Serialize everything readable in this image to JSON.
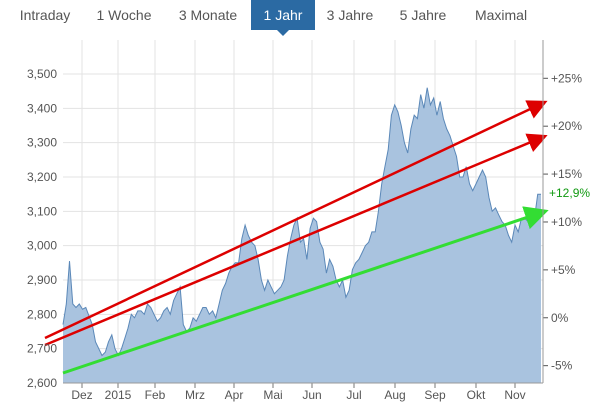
{
  "tabs": {
    "items": [
      {
        "label": "Intraday"
      },
      {
        "label": "1 Woche"
      },
      {
        "label": "3 Monate"
      },
      {
        "label": "1 Jahr"
      },
      {
        "label": "3 Jahre"
      },
      {
        "label": "5 Jahre"
      },
      {
        "label": "Maximal"
      }
    ],
    "active_index": 3
  },
  "colors": {
    "tab_active_bg": "#2b6aa3",
    "area_fill": "#a9c3df",
    "area_line": "#5b88b8",
    "grid": "#e3e3e3",
    "trend_red": "#dd0000",
    "trend_green": "#33dd33",
    "current_pct": "#119911"
  },
  "chart_data": {
    "type": "area",
    "x_labels": [
      "Dez",
      "2015",
      "Feb",
      "Mrz",
      "Apr",
      "Mai",
      "Jun",
      "Jul",
      "Aug",
      "Sep",
      "Okt",
      "Nov"
    ],
    "y_left_ticks": [
      "3,500",
      "3,400",
      "3,300",
      "3,200",
      "3,100",
      "3,000",
      "2,900",
      "2,800",
      "2,700",
      "2,600"
    ],
    "y_left_range": [
      2600,
      3550
    ],
    "y_right_ticks": [
      "+25%",
      "+20%",
      "+15%",
      "+10%",
      "+5%",
      "0%",
      "-5%"
    ],
    "current_pct_label": "+12,9%",
    "grid": true,
    "series": [
      {
        "values": [
          2770,
          2830,
          2955,
          2830,
          2820,
          2830,
          2815,
          2820,
          2795,
          2770,
          2720,
          2700,
          2680,
          2690,
          2720,
          2740,
          2700,
          2680,
          2700,
          2730,
          2760,
          2800,
          2790,
          2810,
          2810,
          2800,
          2830,
          2820,
          2800,
          2780,
          2790,
          2810,
          2820,
          2800,
          2840,
          2860,
          2880,
          2770,
          2750,
          2760,
          2790,
          2780,
          2800,
          2820,
          2820,
          2800,
          2810,
          2790,
          2830,
          2870,
          2890,
          2920,
          2940,
          2950,
          2950,
          3020,
          3060,
          3030,
          3010,
          3000,
          2960,
          2900,
          2870,
          2900,
          2880,
          2860,
          2870,
          2880,
          2900,
          2970,
          3020,
          3060,
          3080,
          3010,
          3020,
          2960,
          3050,
          3080,
          3070,
          3010,
          2990,
          2920,
          2960,
          2940,
          2900,
          2880,
          2900,
          2850,
          2870,
          2930,
          2950,
          2960,
          2980,
          3000,
          3010,
          3040,
          3040,
          3100,
          3180,
          3230,
          3280,
          3380,
          3410,
          3390,
          3350,
          3300,
          3270,
          3340,
          3380,
          3370,
          3440,
          3400,
          3460,
          3410,
          3430,
          3380,
          3420,
          3370,
          3340,
          3320,
          3290,
          3260,
          3200,
          3200,
          3230,
          3180,
          3160,
          3180,
          3200,
          3220,
          3200,
          3140,
          3100,
          3110,
          3090,
          3070,
          3060,
          3030,
          3010,
          3060,
          3040,
          3080,
          3080,
          3070,
          3070,
          3080,
          3150,
          3150
        ]
      }
    ]
  }
}
